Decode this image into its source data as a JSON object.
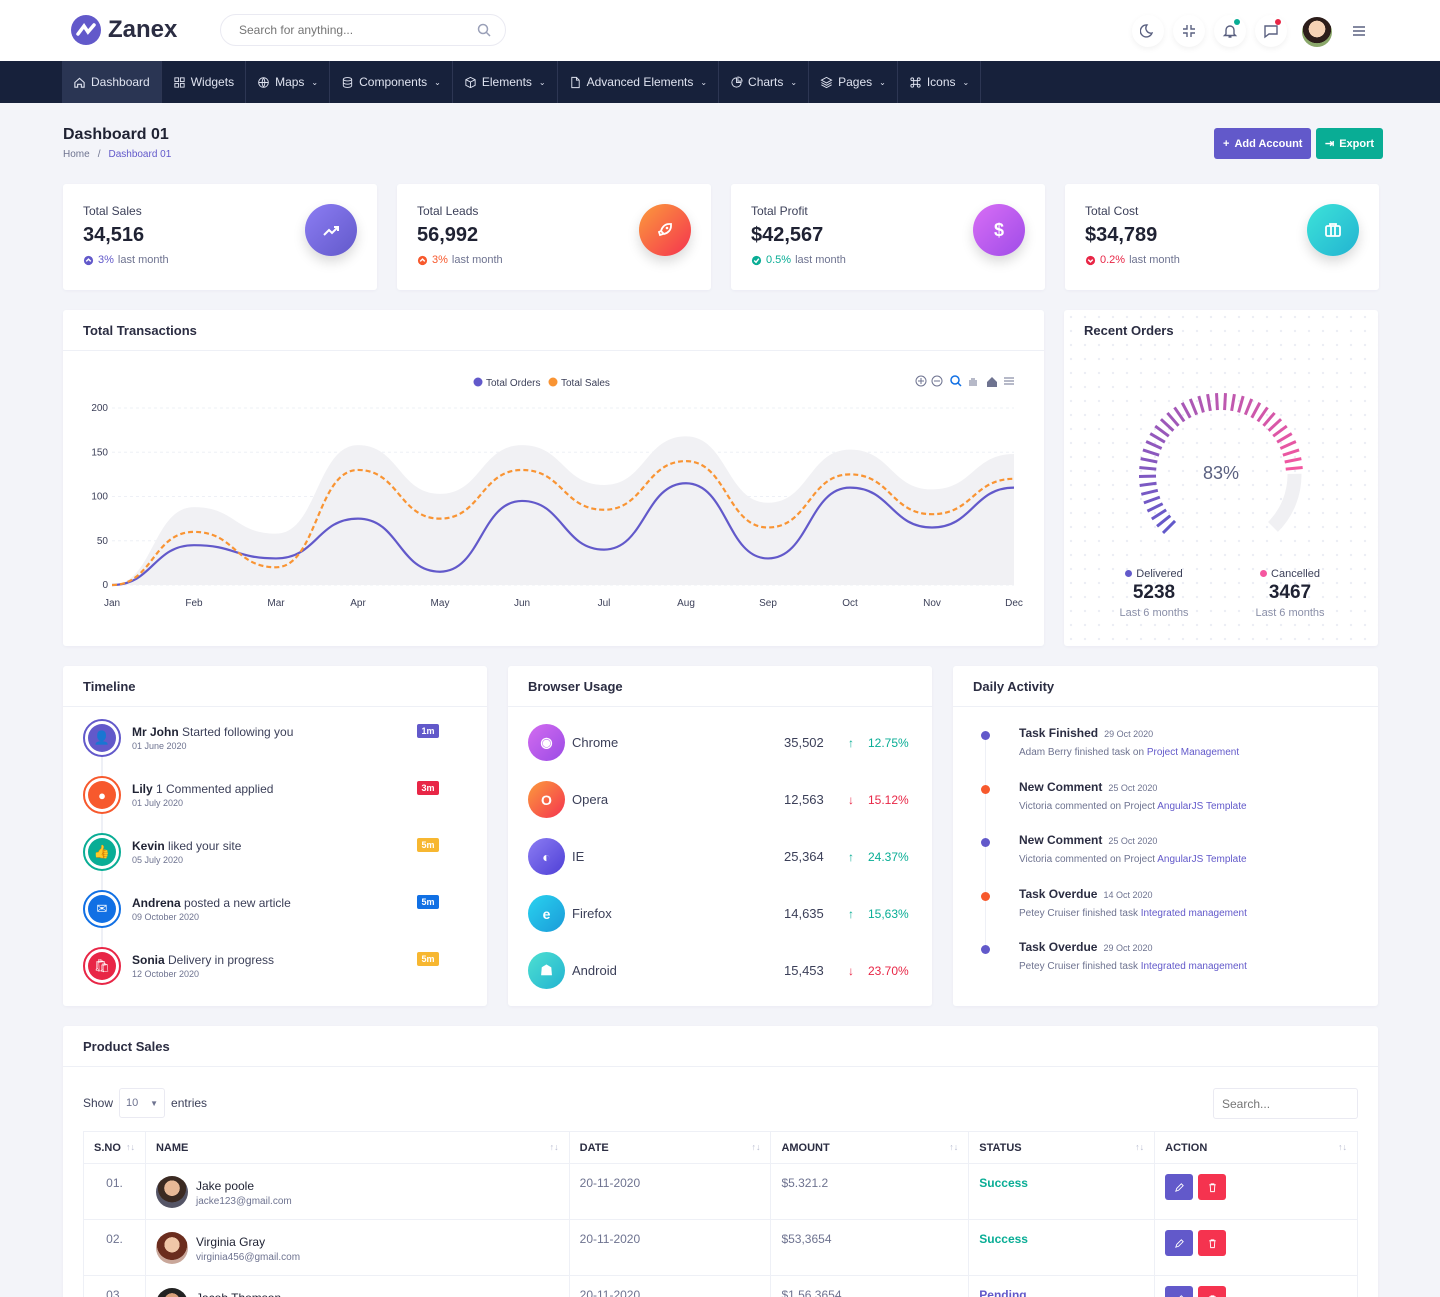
{
  "app": {
    "name": "Zanex",
    "search_placeholder": "Search for anything..."
  },
  "nav": [
    {
      "label": "Dashboard",
      "icon": "home-icon",
      "active": true
    },
    {
      "label": "Widgets",
      "icon": "grid-icon"
    },
    {
      "label": "Maps",
      "icon": "globe-icon"
    },
    {
      "label": "Components",
      "icon": "database-icon"
    },
    {
      "label": "Elements",
      "icon": "box-icon"
    },
    {
      "label": "Advanced Elements",
      "icon": "file-icon"
    },
    {
      "label": "Charts",
      "icon": "pie-chart-icon"
    },
    {
      "label": "Pages",
      "icon": "layers-icon"
    },
    {
      "label": "Icons",
      "icon": "command-icon"
    }
  ],
  "page": {
    "title": "Dashboard 01",
    "breadcrumb": [
      "Home",
      "Dashboard 01"
    ],
    "add_account": "Add Account",
    "export": "Export"
  },
  "stats": [
    {
      "label": "Total Sales",
      "value": "34,516",
      "change": "3%",
      "suffix": "last month",
      "color": "#6259ca",
      "icon": "trending-up-icon"
    },
    {
      "label": "Total Leads",
      "value": "56,992",
      "change": "3%",
      "suffix": "last month",
      "color": "#f7592d",
      "icon": "rocket-icon"
    },
    {
      "label": "Total Profit",
      "value": "$42,567",
      "change": "0.5%",
      "suffix": "last month",
      "color": "#09ad95",
      "icon": "dollar-icon"
    },
    {
      "label": "Total Cost",
      "value": "$34,789",
      "change": "0.2%",
      "suffix": "last month",
      "color": "#e82646",
      "icon": "briefcase-icon"
    }
  ],
  "transactions": {
    "title": "Total Transactions"
  },
  "chart_data": {
    "type": "line",
    "categories": [
      "Jan",
      "Feb",
      "Mar",
      "Apr",
      "May",
      "Jun",
      "Jul",
      "Aug",
      "Sep",
      "Oct",
      "Nov",
      "Dec"
    ],
    "series": [
      {
        "name": "Total Orders",
        "color": "#6259ca",
        "values": [
          0,
          45,
          30,
          75,
          15,
          95,
          40,
          115,
          30,
          110,
          65,
          110
        ]
      },
      {
        "name": "Total Sales",
        "color": "#f99433",
        "values": [
          0,
          60,
          20,
          130,
          75,
          130,
          85,
          140,
          65,
          125,
          80,
          120
        ]
      }
    ],
    "yticks": [
      "0",
      "50",
      "100",
      "150",
      "200"
    ],
    "ylim": [
      0,
      200
    ],
    "grid": true,
    "legend": "top-center"
  },
  "recent_orders": {
    "title": "Recent Orders",
    "percent": "83%",
    "delivered": {
      "label": "Delivered",
      "value": "5238",
      "sub": "Last 6 months"
    },
    "cancelled": {
      "label": "Cancelled",
      "value": "3467",
      "sub": "Last 6 months"
    }
  },
  "timeline": {
    "title": "Timeline",
    "items": [
      {
        "name": "Mr John",
        "text": " Started following you",
        "date": "01 June 2020",
        "badge": "1m",
        "color": "#6259ca",
        "icon": "user-plus-icon"
      },
      {
        "name": "Lily",
        "text": " 1 Commented applied",
        "date": "01 July 2020",
        "badge": "3m",
        "color": "#f7592d",
        "icon": "comment-icon"
      },
      {
        "name": "Kevin",
        "text": " liked your site",
        "date": "05 July 2020",
        "badge": "5m",
        "color": "#09ad95",
        "icon": "thumbs-up-icon"
      },
      {
        "name": "Andrena",
        "text": " posted a new article",
        "date": "09 October 2020",
        "badge": "5m",
        "color": "#1170e4",
        "icon": "mail-icon"
      },
      {
        "name": "Sonia",
        "text": " Delivery in progress",
        "date": "12 October 2020",
        "badge": "5m",
        "color": "#e82646",
        "icon": "bag-icon"
      }
    ],
    "badge_colors": [
      "#6259ca",
      "#e82646",
      "#f7b731",
      "#1170e4",
      "#f7b731"
    ]
  },
  "browser": {
    "title": "Browser Usage",
    "items": [
      {
        "name": "Chrome",
        "count": "35,502",
        "pct": "12.75%",
        "dir": "up",
        "icon": "chrome-icon",
        "color": "#b05ce8"
      },
      {
        "name": "Opera",
        "count": "12,563",
        "pct": "15.12%",
        "dir": "down",
        "icon": "opera-icon",
        "color": "#f7592d"
      },
      {
        "name": "IE",
        "count": "25,364",
        "pct": "24.37%",
        "dir": "up",
        "icon": "ie-icon",
        "color": "#6259ca"
      },
      {
        "name": "Firefox",
        "count": "14,635",
        "pct": "15,63%",
        "dir": "up",
        "icon": "edge-icon",
        "color": "#1cb5e0"
      },
      {
        "name": "Android",
        "count": "15,453",
        "pct": "23.70%",
        "dir": "down",
        "icon": "android-icon",
        "color": "#2bc0c9"
      }
    ]
  },
  "activity": {
    "title": "Daily Activity",
    "items": [
      {
        "title": "Task Finished",
        "date": "29 Oct 2020",
        "text": "Adam Berry finished task on ",
        "link": "Project Management",
        "color": "#6259ca"
      },
      {
        "title": "New Comment",
        "date": "25 Oct 2020",
        "text": "Victoria commented on Project ",
        "link": "AngularJS Template",
        "color": "#f7592d"
      },
      {
        "title": "New Comment",
        "date": "25 Oct 2020",
        "text": "Victoria commented on Project ",
        "link": "AngularJS Template",
        "color": "#6259ca"
      },
      {
        "title": "Task Overdue",
        "date": "14 Oct 2020",
        "text": "Petey Cruiser finished task ",
        "link": "Integrated management",
        "color": "#f7592d"
      },
      {
        "title": "Task Overdue",
        "date": "29 Oct 2020",
        "text": "Petey Cruiser finished task ",
        "link": "Integrated management",
        "color": "#6259ca"
      }
    ]
  },
  "product_sales": {
    "title": "Product Sales",
    "show": "Show",
    "entries": "entries",
    "page_size": "10",
    "search_placeholder": "Search...",
    "columns": [
      "S.NO",
      "NAME",
      "DATE",
      "AMOUNT",
      "STATUS",
      "ACTION"
    ],
    "rows": [
      {
        "no": "01.",
        "name": "Jake poole",
        "email": "jacke123@gmail.com",
        "date": "20-11-2020",
        "amount": "$5.321.2",
        "status": "Success",
        "status_color": "#09ad95"
      },
      {
        "no": "02.",
        "name": "Virginia Gray",
        "email": "virginia456@gmail.com",
        "date": "20-11-2020",
        "amount": "$53,3654",
        "status": "Success",
        "status_color": "#09ad95"
      },
      {
        "no": "03.",
        "name": "Jacob Thomson",
        "email": "",
        "date": "20-11-2020",
        "amount": "$1,56,3654",
        "status": "Pending",
        "status_color": "#6259ca"
      }
    ]
  }
}
